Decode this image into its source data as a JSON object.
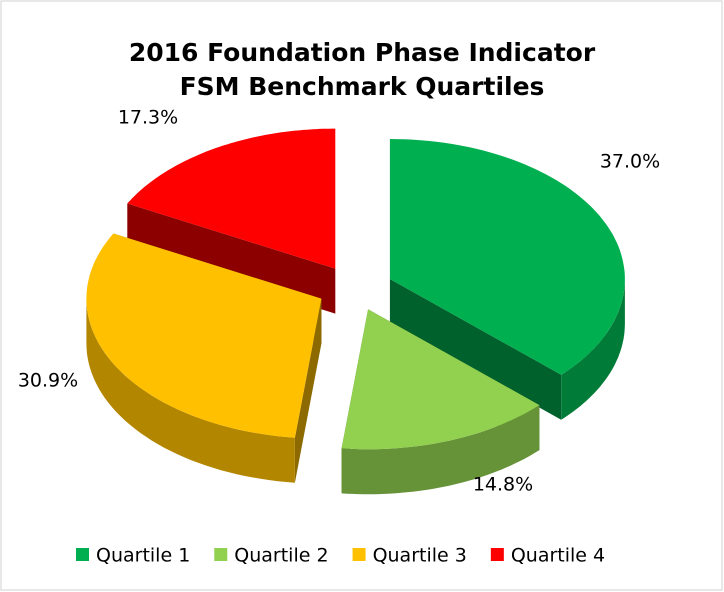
{
  "chart_data": {
    "type": "pie",
    "title": [
      "2016 Foundation Phase Indicator",
      "FSM Benchmark Quartiles"
    ],
    "categories": [
      "Quartile 1",
      "Quartile 2",
      "Quartile 3",
      "Quartile 4"
    ],
    "values": [
      37.0,
      14.8,
      30.9,
      17.3
    ],
    "value_labels": [
      "37.0%",
      "14.8%",
      "30.9%",
      "17.3%"
    ],
    "colors": [
      "#00b050",
      "#92d050",
      "#ffc000",
      "#ff0000"
    ],
    "legend": "bottom"
  }
}
